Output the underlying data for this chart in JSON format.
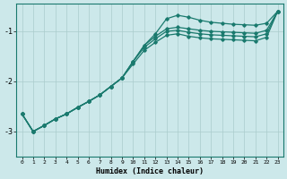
{
  "xlabel": "Humidex (Indice chaleur)",
  "bg_color": "#cce8ea",
  "grid_color": "#aacccc",
  "line_color": "#1a7a6e",
  "xlim": [
    -0.5,
    23.5
  ],
  "ylim": [
    -3.5,
    -0.45
  ],
  "yticks": [
    -3,
    -2,
    -1
  ],
  "xticks": [
    0,
    1,
    2,
    3,
    4,
    5,
    6,
    7,
    8,
    9,
    10,
    11,
    12,
    13,
    14,
    15,
    16,
    17,
    18,
    19,
    20,
    21,
    22,
    23
  ],
  "line1_x": [
    0,
    1,
    2,
    3,
    4,
    5,
    6,
    7,
    8,
    9,
    10,
    11,
    12,
    13,
    14,
    15,
    16,
    17,
    18,
    19,
    20,
    21,
    22,
    23
  ],
  "line1_y": [
    -2.65,
    -3.0,
    -2.88,
    -2.75,
    -2.65,
    -2.52,
    -2.4,
    -2.27,
    -2.1,
    -1.93,
    -1.6,
    -1.28,
    -1.05,
    -0.75,
    -0.68,
    -0.72,
    -0.78,
    -0.82,
    -0.84,
    -0.86,
    -0.87,
    -0.88,
    -0.84,
    -0.6
  ],
  "line2_x": [
    0,
    1,
    2,
    3,
    4,
    5,
    6,
    7,
    8,
    9,
    10,
    11,
    12,
    13,
    14,
    15,
    16,
    17,
    18,
    19,
    20,
    21,
    22,
    23
  ],
  "line2_y": [
    -2.65,
    -3.0,
    -2.88,
    -2.75,
    -2.65,
    -2.52,
    -2.4,
    -2.27,
    -2.1,
    -1.93,
    -1.6,
    -1.28,
    -1.1,
    -0.95,
    -0.92,
    -0.95,
    -0.98,
    -1.0,
    -1.01,
    -1.02,
    -1.03,
    -1.04,
    -0.98,
    -0.6
  ],
  "line3_x": [
    0,
    1,
    2,
    3,
    4,
    5,
    6,
    7,
    8,
    9,
    10,
    11,
    12,
    13,
    14,
    15,
    16,
    17,
    18,
    19,
    20,
    21,
    22,
    23
  ],
  "line3_y": [
    -2.65,
    -3.0,
    -2.88,
    -2.75,
    -2.65,
    -2.52,
    -2.4,
    -2.27,
    -2.1,
    -1.93,
    -1.6,
    -1.32,
    -1.15,
    -1.0,
    -0.98,
    -1.02,
    -1.05,
    -1.07,
    -1.08,
    -1.09,
    -1.1,
    -1.11,
    -1.05,
    -0.6
  ],
  "line4_x": [
    0,
    1,
    2,
    3,
    4,
    5,
    6,
    7,
    8,
    9,
    10,
    11,
    12,
    13,
    14,
    15,
    16,
    17,
    18,
    19,
    20,
    21,
    22,
    23
  ],
  "line4_y": [
    -2.65,
    -3.0,
    -2.88,
    -2.75,
    -2.65,
    -2.52,
    -2.4,
    -2.27,
    -2.1,
    -1.93,
    -1.65,
    -1.38,
    -1.22,
    -1.08,
    -1.05,
    -1.1,
    -1.13,
    -1.15,
    -1.16,
    -1.17,
    -1.18,
    -1.19,
    -1.12,
    -0.6
  ]
}
